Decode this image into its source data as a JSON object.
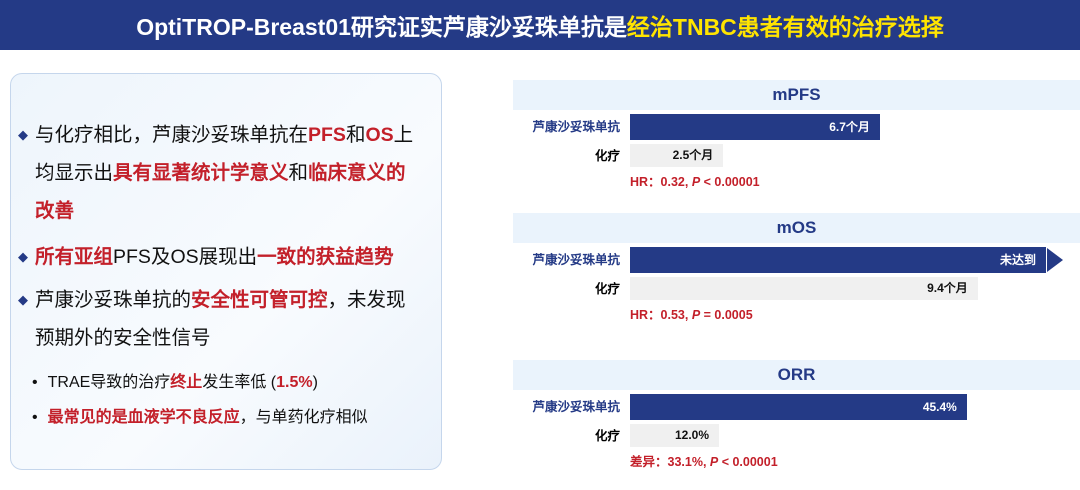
{
  "title": {
    "part1": "OptiTROP-Breast01研究证实芦康沙妥珠单抗是",
    "part2": "经治TNBC患者有效的治疗选择"
  },
  "colors": {
    "navy": "#243a86",
    "red": "#c3202a",
    "highlight": "#ffe400",
    "chemo_bar": "#f0f0f0"
  },
  "bullets": {
    "b1": [
      "与化疗相比，芦康沙妥珠单抗在",
      "PFS",
      "和",
      "OS",
      "上均显示出",
      "具有显著统计学意义",
      "和",
      "临床意义的改善"
    ],
    "b2": [
      "所有亚组",
      "PFS及OS展现出",
      "一致的获益趋势"
    ],
    "b3": [
      "芦康沙妥珠单抗的",
      "安全性可管可控",
      "，未发现预期外的安全性信号"
    ],
    "s1": [
      "TRAE导致的治疗",
      "终止",
      "发生率低 (",
      "1.5%",
      ")"
    ],
    "s2": [
      "最常见的是血液学不良反应",
      "，与单药化疗相似"
    ],
    "bullet_icon": "diamond",
    "sub_icon": "dot"
  },
  "chart_data": [
    {
      "type": "bar",
      "orientation": "horizontal",
      "title": "mPFS",
      "categories": [
        "芦康沙妥珠单抗",
        "化疗"
      ],
      "values": [
        6.7,
        2.5
      ],
      "unit": "months",
      "data_labels": [
        "6.7个月",
        "2.5个月"
      ],
      "stat": "HR：0.32, ",
      "stat_p": "P",
      " stat_p_rest": "",
      "stat_rest": " < 0.00001"
    },
    {
      "type": "bar",
      "orientation": "horizontal",
      "title": "mOS",
      "categories": [
        "芦康沙妥珠单抗",
        "化疗"
      ],
      "values": [
        null,
        9.4
      ],
      "unit": "months",
      "data_labels": [
        "未达到",
        "9.4个月"
      ],
      "not_reached_arrow": true,
      "stat": "HR：0.53, ",
      "stat_p": "P",
      "stat_rest": " = 0.0005"
    },
    {
      "type": "bar",
      "orientation": "horizontal",
      "title": "ORR",
      "categories": [
        "芦康沙妥珠单抗",
        "化疗"
      ],
      "values": [
        45.4,
        12.0
      ],
      "unit": "%",
      "data_labels": [
        "45.4%",
        "12.0%"
      ],
      "stat": "差异：33.1%, ",
      "stat_p": "P",
      "stat_rest": " < 0.00001"
    }
  ]
}
